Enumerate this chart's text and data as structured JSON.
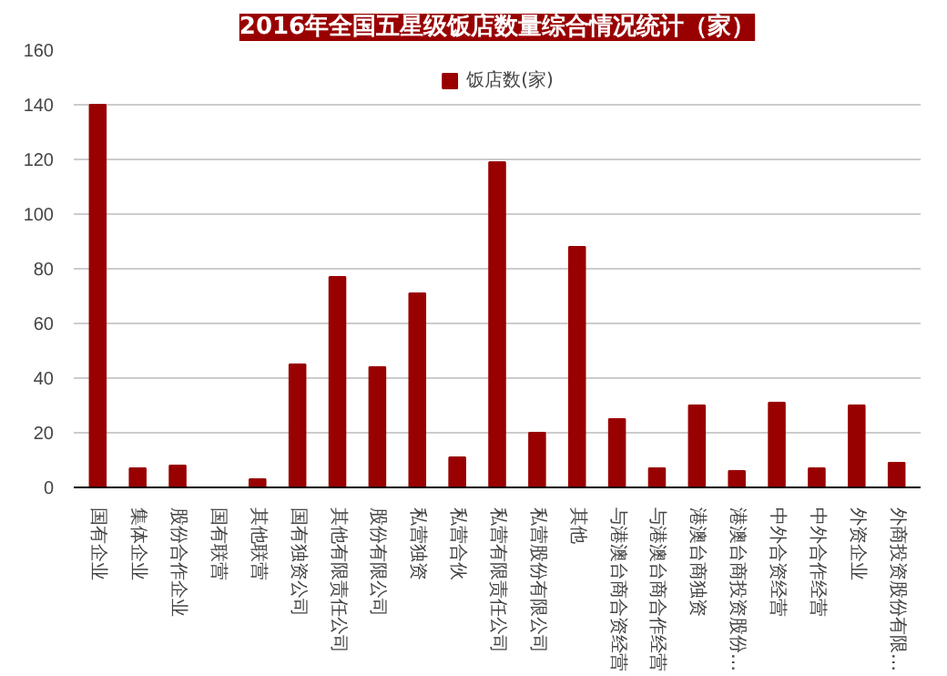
{
  "chart_data": {
    "type": "bar",
    "title": "2016年全国五星级饭店数量综合情况统计（家）",
    "categories": [
      "国有企业",
      "集体企业",
      "股份合作企业",
      "国有联营",
      "其他联营",
      "国有独资公司",
      "其他有限责任公司",
      "股份有限公司",
      "私营独资",
      "私营合伙",
      "私营有限责任公司",
      "私营股份有限公司",
      "其他",
      "与港澳台商合资经营",
      "与港澳台商合作经营",
      "港澳台商独资",
      "港澳台商投资股份…",
      "中外合资经营",
      "中外合作经营",
      "外资企业",
      "外商投资股份有限…"
    ],
    "series": [
      {
        "name": "饭店数(家)",
        "color": "#990000",
        "values": [
          140,
          7,
          8,
          0,
          3,
          45,
          77,
          44,
          71,
          11,
          119,
          20,
          88,
          25,
          7,
          30,
          6,
          31,
          7,
          30,
          9
        ]
      }
    ],
    "ylim": [
      0,
      160
    ],
    "yticks": [
      0,
      20,
      40,
      60,
      80,
      100,
      120,
      140,
      160
    ],
    "grid": "y",
    "legend": "top"
  }
}
